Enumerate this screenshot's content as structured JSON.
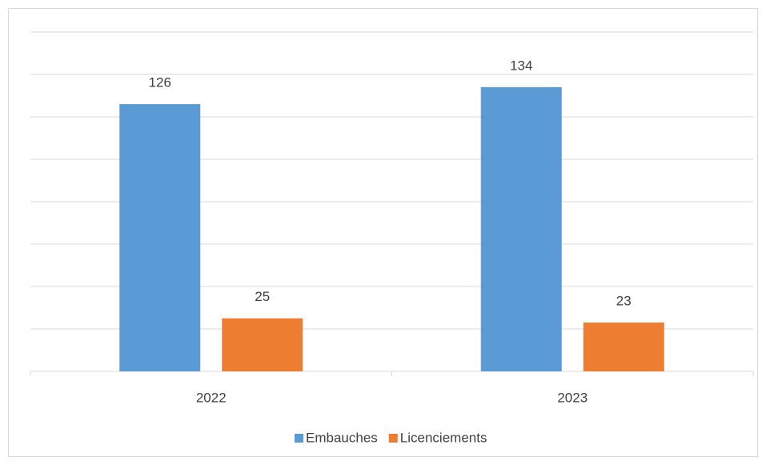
{
  "chart_data": {
    "type": "bar",
    "categories": [
      "2022",
      "2023"
    ],
    "series": [
      {
        "name": "Embauches",
        "color": "#5b9bd5",
        "values": [
          126,
          134
        ]
      },
      {
        "name": "Licenciements",
        "color": "#ed7d31",
        "values": [
          25,
          23
        ]
      }
    ],
    "ylim": [
      0,
      160
    ],
    "yticks": [
      0,
      20,
      40,
      60,
      80,
      100,
      120,
      140,
      160
    ],
    "grid": true,
    "legend": "bottom"
  }
}
